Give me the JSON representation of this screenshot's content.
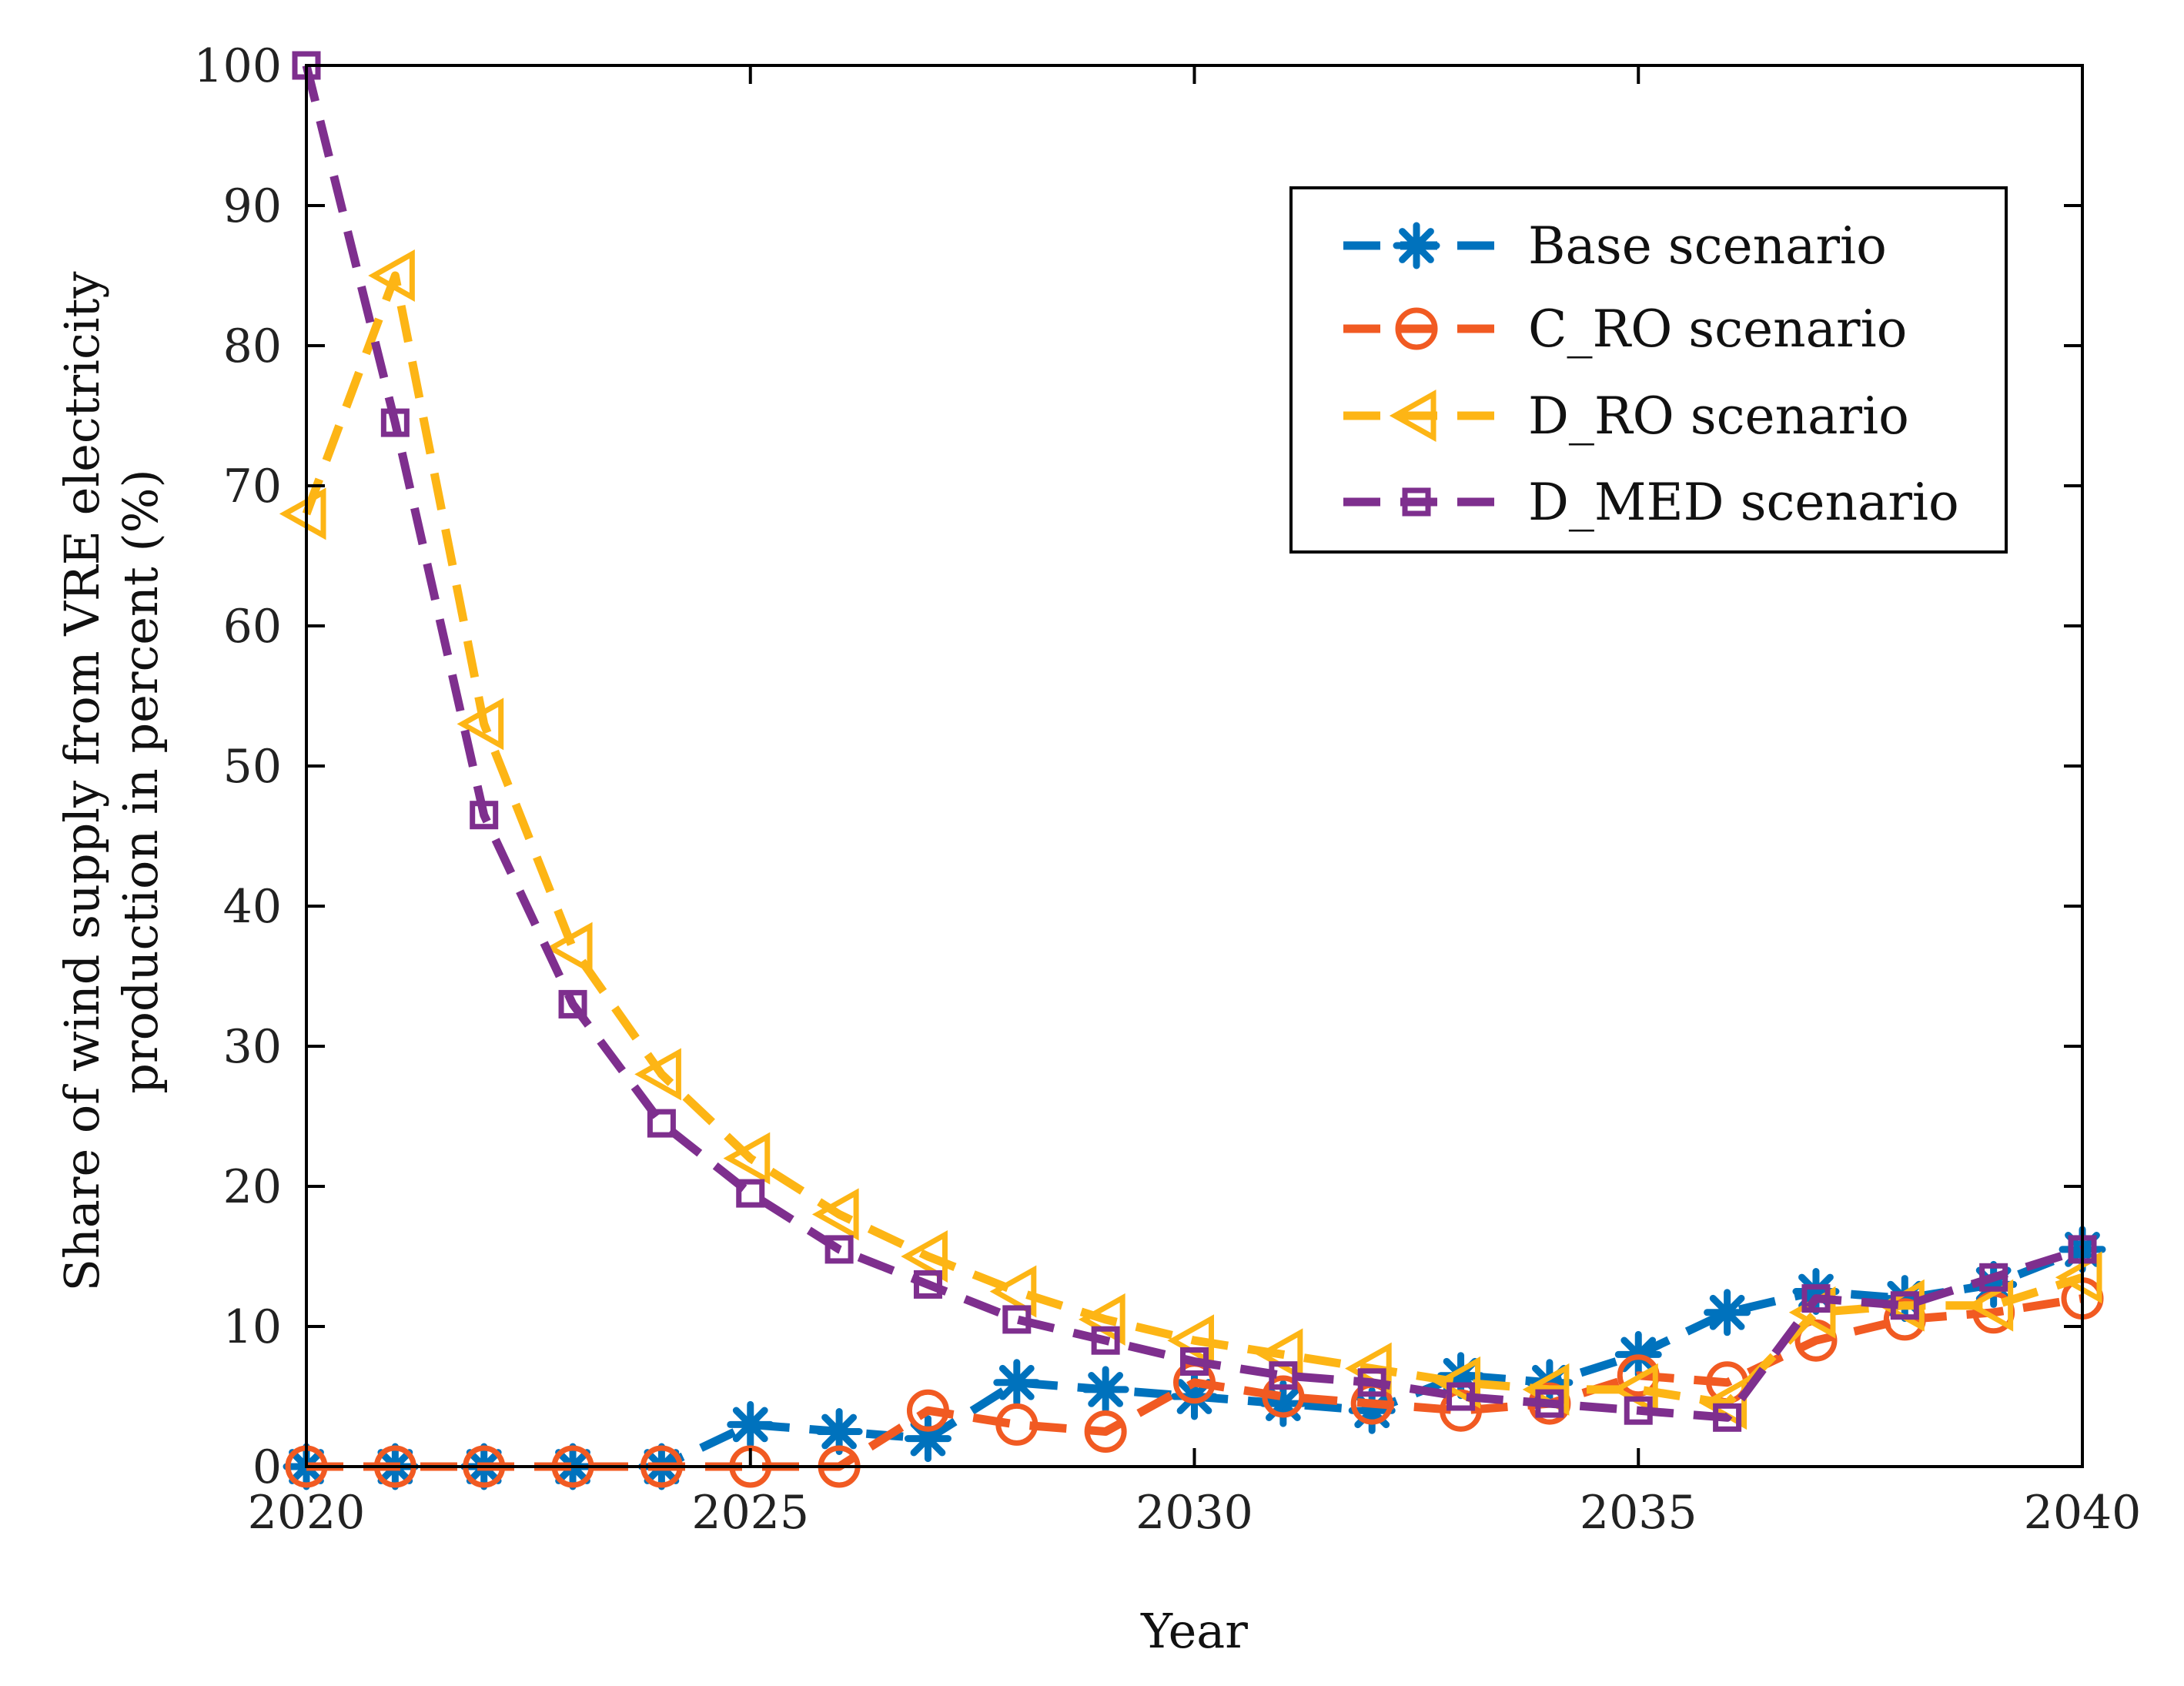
{
  "chart_data": {
    "type": "line",
    "title": "",
    "xlabel": "Year",
    "ylabel_lines": [
      "Share of wind supply from VRE electricity",
      "production in percent (%)"
    ],
    "xlim": [
      2020,
      2040
    ],
    "ylim": [
      0,
      100
    ],
    "xticks": [
      2020,
      2025,
      2030,
      2035,
      2040
    ],
    "yticks": [
      0,
      10,
      20,
      30,
      40,
      50,
      60,
      70,
      80,
      90,
      100
    ],
    "grid": false,
    "legend_position": "top-right",
    "x": [
      2020,
      2021,
      2022,
      2023,
      2024,
      2025,
      2026,
      2027,
      2028,
      2029,
      2030,
      2031,
      2032,
      2033,
      2034,
      2035,
      2036,
      2037,
      2038,
      2039,
      2040
    ],
    "series": [
      {
        "name": "Base scenario",
        "color": "#0072BD",
        "marker": "asterisk",
        "values": [
          0,
          0,
          0,
          0,
          0,
          3,
          2.5,
          2,
          6,
          5.5,
          5,
          4.5,
          4,
          6.5,
          6,
          8,
          11,
          12.5,
          12,
          13,
          15.5
        ]
      },
      {
        "name": "C_RO scenario",
        "color": "#F15A22",
        "marker": "circle",
        "values": [
          0,
          0,
          0,
          0,
          0,
          0,
          0,
          4,
          3,
          2.5,
          6,
          5,
          4.5,
          4,
          4.5,
          6.5,
          6,
          9,
          10.5,
          11,
          12
        ]
      },
      {
        "name": "D_RO scenario",
        "color": "#FDB515",
        "marker": "triangle-left",
        "values": [
          68,
          85,
          53,
          37,
          28,
          22,
          18,
          15,
          12.5,
          10.5,
          9,
          8,
          7,
          6,
          5.5,
          5.5,
          4.5,
          11,
          11.5,
          11.5,
          13.5
        ]
      },
      {
        "name": "D_MED scenario",
        "color": "#7E2F8E",
        "marker": "square",
        "values": [
          100,
          74.5,
          46.5,
          33,
          24.5,
          19.5,
          15.5,
          13,
          10.5,
          9,
          7.5,
          6.5,
          6,
          5,
          4.5,
          4,
          3.5,
          12,
          11.5,
          13.5,
          15.5
        ]
      }
    ]
  }
}
